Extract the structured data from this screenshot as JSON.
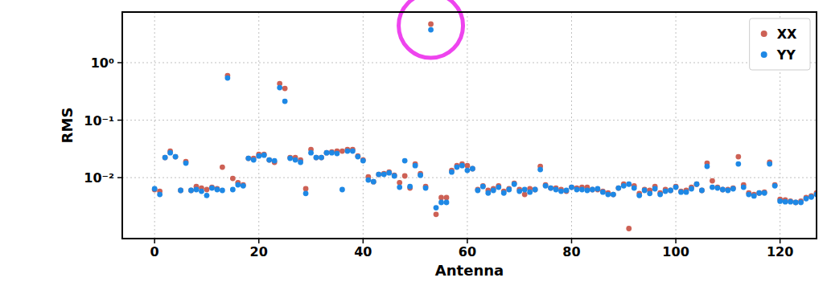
{
  "chart_data": {
    "type": "scatter",
    "x_label": "Antenna",
    "y_label": "RMS",
    "log": "y",
    "grid": true,
    "legend": "upper right",
    "xlim": [
      -6.2,
      127
    ],
    "ylim": [
      0.00087,
      7.6
    ],
    "xticks": [
      0,
      20,
      40,
      60,
      80,
      100,
      120
    ],
    "yticks": [
      {
        "value": 0.01,
        "label": "10⁻²"
      },
      {
        "value": 0.1,
        "label": "10⁻¹"
      },
      {
        "value": 1,
        "label": "10⁰"
      }
    ],
    "x": [
      0,
      1,
      2,
      3,
      4,
      5,
      6,
      7,
      8,
      9,
      10,
      11,
      12,
      13,
      14,
      15,
      16,
      17,
      18,
      19,
      20,
      21,
      22,
      23,
      24,
      25,
      26,
      27,
      28,
      29,
      30,
      31,
      32,
      33,
      34,
      35,
      36,
      37,
      38,
      39,
      40,
      41,
      42,
      43,
      44,
      45,
      46,
      47,
      48,
      49,
      50,
      51,
      52,
      53,
      54,
      55,
      56,
      57,
      58,
      59,
      60,
      61,
      62,
      63,
      64,
      65,
      66,
      67,
      68,
      69,
      70,
      71,
      72,
      73,
      74,
      75,
      76,
      77,
      78,
      79,
      80,
      81,
      82,
      83,
      84,
      85,
      86,
      87,
      88,
      89,
      90,
      91,
      92,
      93,
      94,
      95,
      96,
      97,
      98,
      99,
      100,
      101,
      102,
      103,
      104,
      105,
      106,
      107,
      108,
      109,
      110,
      111,
      112,
      113,
      114,
      115,
      116,
      117,
      118,
      119,
      120,
      121,
      122,
      123,
      124,
      125,
      126,
      127
    ],
    "series": [
      {
        "name": "XX",
        "color": "#cd6155",
        "marker": "circle",
        "values": [
          0.0062,
          0.0058,
          0.0224,
          0.029,
          0.0231,
          0.006,
          0.019,
          0.006,
          0.007,
          0.0066,
          0.0062,
          0.0068,
          0.0064,
          0.0152,
          0.597,
          0.0097,
          0.0082,
          0.0075,
          0.0217,
          0.0217,
          0.0255,
          0.0255,
          0.0203,
          0.0185,
          0.433,
          0.357,
          0.0224,
          0.0224,
          0.0203,
          0.0064,
          0.0309,
          0.0224,
          0.0224,
          0.0271,
          0.028,
          0.029,
          0.029,
          0.0309,
          0.0309,
          0.0238,
          0.0203,
          0.0103,
          0.0085,
          0.0114,
          0.0117,
          0.0125,
          0.011,
          0.0082,
          0.0107,
          0.0066,
          0.0173,
          0.0117,
          0.007,
          4.69,
          0.0023,
          0.0045,
          0.0045,
          0.0134,
          0.0162,
          0.0173,
          0.0162,
          0.0143,
          0.0062,
          0.0072,
          0.006,
          0.0064,
          0.0072,
          0.0058,
          0.0064,
          0.008,
          0.0062,
          0.0051,
          0.0064,
          0.0062,
          0.0157,
          0.0075,
          0.0066,
          0.0066,
          0.0062,
          0.0058,
          0.0068,
          0.0066,
          0.0068,
          0.0068,
          0.0062,
          0.0062,
          0.0058,
          0.0054,
          0.0051,
          0.0066,
          0.0077,
          0.0013,
          0.0072,
          0.0053,
          0.0062,
          0.006,
          0.007,
          0.0054,
          0.0062,
          0.006,
          0.007,
          0.0058,
          0.006,
          0.0068,
          0.0077,
          0.006,
          0.0179,
          0.0088,
          0.0068,
          0.0062,
          0.0062,
          0.0066,
          0.0231,
          0.0075,
          0.0054,
          0.0051,
          0.0054,
          0.0056,
          0.0185,
          0.0075,
          0.0042,
          0.0041,
          0.0039,
          0.0037,
          0.0039,
          0.0045,
          0.0048,
          0.0054
        ]
      },
      {
        "name": "YY",
        "color": "#1e88e5",
        "marker": "circle",
        "values": [
          0.0064,
          0.0051,
          0.0224,
          0.0271,
          0.0231,
          0.006,
          0.0179,
          0.006,
          0.0062,
          0.0058,
          0.0049,
          0.0066,
          0.0062,
          0.006,
          0.542,
          0.0062,
          0.0075,
          0.0072,
          0.0217,
          0.0203,
          0.0238,
          0.0246,
          0.0203,
          0.0197,
          0.368,
          0.213,
          0.0217,
          0.0203,
          0.0185,
          0.0053,
          0.0271,
          0.0224,
          0.0224,
          0.0271,
          0.0271,
          0.0263,
          0.0062,
          0.029,
          0.029,
          0.0231,
          0.0197,
          0.0091,
          0.0085,
          0.0114,
          0.0114,
          0.0121,
          0.0107,
          0.0068,
          0.0197,
          0.007,
          0.0162,
          0.011,
          0.0066,
          3.74,
          0.003,
          0.0037,
          0.0037,
          0.0125,
          0.0152,
          0.0162,
          0.0134,
          0.0143,
          0.006,
          0.007,
          0.0054,
          0.006,
          0.0068,
          0.0054,
          0.0062,
          0.0077,
          0.0058,
          0.0062,
          0.0056,
          0.0062,
          0.0138,
          0.0072,
          0.0066,
          0.0062,
          0.0058,
          0.006,
          0.0068,
          0.0062,
          0.0062,
          0.006,
          0.0062,
          0.0064,
          0.0056,
          0.0051,
          0.0051,
          0.0066,
          0.0072,
          0.0077,
          0.0066,
          0.0049,
          0.006,
          0.0053,
          0.0064,
          0.0051,
          0.0058,
          0.006,
          0.0068,
          0.0056,
          0.0056,
          0.0064,
          0.0077,
          0.006,
          0.0157,
          0.0068,
          0.0066,
          0.0062,
          0.006,
          0.0064,
          0.0173,
          0.0068,
          0.0051,
          0.0048,
          0.0054,
          0.0054,
          0.0173,
          0.0072,
          0.0039,
          0.0038,
          0.0038,
          0.0037,
          0.0037,
          0.0043,
          0.0046,
          0.0051
        ]
      }
    ]
  }
}
